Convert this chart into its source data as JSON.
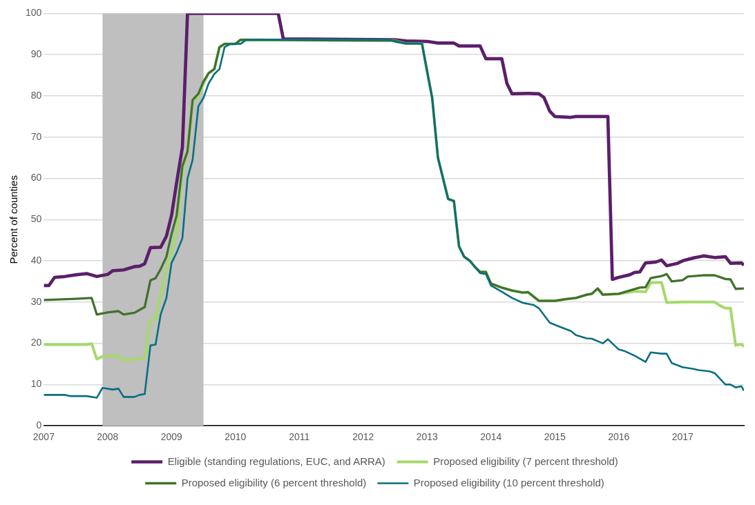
{
  "chart_data": {
    "type": "line",
    "ylabel": "Percent of counties",
    "xlim": [
      2007,
      2017.96
    ],
    "xticks": [
      2007,
      2008,
      2009,
      2010,
      2011,
      2012,
      2013,
      2014,
      2015,
      2016,
      2017
    ],
    "ylim": [
      0,
      100
    ],
    "yticks": [
      0,
      10,
      20,
      30,
      40,
      50,
      60,
      70,
      80,
      90,
      100
    ],
    "grid": "y",
    "legend": "bottom",
    "marker": "none",
    "line_style": "solid",
    "bands": [
      {
        "axis": "x",
        "from": 2007.92,
        "to": 2009.5,
        "color": "#bfbfbf"
      }
    ],
    "series": [
      {
        "name": "Eligible (standing regulations, EUC, and ARRA)",
        "color": "#5b1f6a",
        "x": [
          2007,
          2007.08,
          2007.17,
          2007.33,
          2007.5,
          2007.67,
          2007.83,
          2008,
          2008.08,
          2008.25,
          2008.42,
          2008.5,
          2008.58,
          2008.67,
          2008.83,
          2008.92,
          2009,
          2009.08,
          2009.17,
          2009.25,
          2010.67,
          2010.75,
          2012.5,
          2012.67,
          2013,
          2013.17,
          2013.42,
          2013.5,
          2013.83,
          2013.92,
          2014.17,
          2014.25,
          2014.33,
          2014.58,
          2014.75,
          2014.83,
          2014.92,
          2015,
          2015.25,
          2015.33,
          2015.83,
          2015.9,
          2016,
          2016.17,
          2016.25,
          2016.33,
          2016.42,
          2016.58,
          2016.67,
          2016.75,
          2016.92,
          2017,
          2017.17,
          2017.33,
          2017.5,
          2017.67,
          2017.75,
          2017.92,
          2017.96
        ],
        "values": [
          34,
          34,
          36,
          36.2,
          36.6,
          36.9,
          36.2,
          36.7,
          37.6,
          37.8,
          38.6,
          38.7,
          39.3,
          43.2,
          43.3,
          46,
          51,
          59,
          67.5,
          100,
          100,
          93.8,
          93.6,
          93.3,
          93.2,
          92.8,
          92.8,
          92.1,
          92.1,
          89,
          89,
          83,
          80.5,
          80.6,
          80.5,
          79.6,
          76.3,
          75,
          74.8,
          75,
          75,
          35.5,
          36,
          36.6,
          37.2,
          37.3,
          39.5,
          39.7,
          40.2,
          38.8,
          39.4,
          40,
          40.7,
          41.2,
          40.8,
          41,
          39.4,
          39.5,
          39
        ]
      },
      {
        "name": "Proposed eligibility (7 percent threshold)",
        "color": "#a5d96a",
        "x": [
          2007,
          2007.67,
          2007.75,
          2007.83,
          2007.92,
          2008.17,
          2008.25,
          2008.58,
          2008.67,
          2008.75,
          2008.83,
          2008.92,
          2009,
          2009.08,
          2009.17,
          2009.25,
          2009.33,
          2009.42,
          2009.5,
          2009.58,
          2009.67,
          2009.75,
          2009.83,
          2010,
          2010.08,
          2012.5,
          2012.58,
          2012.67,
          2012.92,
          2013,
          2013.08,
          2013.17,
          2013.33,
          2013.42,
          2013.5,
          2013.58,
          2013.67,
          2013.75,
          2013.83,
          2013.92,
          2014,
          2014.17,
          2014.33,
          2014.5,
          2014.58,
          2014.75,
          2015,
          2015.17,
          2015.33,
          2015.5,
          2015.58,
          2015.67,
          2015.75,
          2016,
          2016.25,
          2016.42,
          2016.5,
          2016.67,
          2016.75,
          2017,
          2017.5,
          2017.58,
          2017.67,
          2017.75,
          2017.83,
          2017.92,
          2017.96
        ],
        "values": [
          19.7,
          19.7,
          19.9,
          16.2,
          16.8,
          17,
          15.8,
          16.4,
          25.5,
          26,
          32,
          38,
          42,
          47,
          62,
          66,
          78.5,
          80,
          83,
          85.5,
          86.5,
          91.8,
          92.6,
          92.6,
          93.6,
          93.4,
          93,
          92.7,
          92.7,
          86,
          79.5,
          65,
          55,
          54.5,
          43.5,
          41,
          40,
          38.5,
          37.3,
          37.3,
          34.5,
          33.5,
          32.8,
          32.3,
          32.4,
          30.3,
          30.3,
          30.7,
          31,
          31.8,
          32,
          33.3,
          31.8,
          32,
          32.6,
          32.5,
          34.7,
          34.8,
          29.9,
          30,
          30,
          29.2,
          28.5,
          28.5,
          19.5,
          19.8,
          19.2
        ]
      },
      {
        "name": "Proposed eligibility (6 percent threshold)",
        "color": "#41722f",
        "x": [
          2007,
          2007.5,
          2007.75,
          2007.83,
          2008,
          2008.17,
          2008.25,
          2008.42,
          2008.58,
          2008.67,
          2008.75,
          2008.83,
          2008.92,
          2009,
          2009.08,
          2009.17,
          2009.25,
          2009.33,
          2009.42,
          2009.5,
          2009.58,
          2009.67,
          2009.75,
          2009.83,
          2010,
          2010.08,
          2012.5,
          2012.58,
          2012.67,
          2012.92,
          2013,
          2013.08,
          2013.17,
          2013.33,
          2013.42,
          2013.5,
          2013.58,
          2013.67,
          2013.75,
          2013.83,
          2013.92,
          2014,
          2014.17,
          2014.33,
          2014.5,
          2014.58,
          2014.75,
          2015,
          2015.17,
          2015.33,
          2015.5,
          2015.58,
          2015.67,
          2015.75,
          2016,
          2016.17,
          2016.33,
          2016.42,
          2016.5,
          2016.67,
          2016.75,
          2016.83,
          2017,
          2017.08,
          2017.33,
          2017.5,
          2017.67,
          2017.75,
          2017.83,
          2017.96
        ],
        "values": [
          30.5,
          30.8,
          31,
          27,
          27.5,
          27.8,
          27,
          27.4,
          28.8,
          35.3,
          35.8,
          38,
          41,
          46.5,
          51,
          63,
          66.5,
          79,
          80.5,
          83.5,
          85.5,
          86.5,
          91.8,
          92.6,
          92.6,
          93.6,
          93.4,
          93,
          92.7,
          92.7,
          86,
          79.5,
          65,
          55,
          54.5,
          43.5,
          41,
          40,
          38.5,
          37.3,
          37.3,
          34.5,
          33.5,
          32.8,
          32.3,
          32.4,
          30.3,
          30.3,
          30.7,
          31,
          31.8,
          32,
          33.3,
          31.8,
          32,
          32.8,
          33.5,
          33.6,
          35.8,
          36.3,
          36.8,
          35,
          35.3,
          36.2,
          36.5,
          36.5,
          35.6,
          35.5,
          33.2,
          33.3
        ]
      },
      {
        "name": "Proposed eligibility (10 percent threshold)",
        "color": "#066f80",
        "x": [
          2007,
          2007.33,
          2007.42,
          2007.67,
          2007.83,
          2007.92,
          2008.08,
          2008.17,
          2008.25,
          2008.42,
          2008.5,
          2008.58,
          2008.67,
          2008.75,
          2008.83,
          2008.92,
          2009,
          2009.08,
          2009.17,
          2009.25,
          2009.33,
          2009.42,
          2009.5,
          2009.58,
          2009.67,
          2009.75,
          2009.83,
          2009.92,
          2010.08,
          2010.17,
          2012.42,
          2012.5,
          2012.67,
          2012.92,
          2013,
          2013.08,
          2013.17,
          2013.33,
          2013.42,
          2013.5,
          2013.58,
          2013.67,
          2013.75,
          2013.83,
          2013.92,
          2014,
          2014.17,
          2014.33,
          2014.5,
          2014.67,
          2014.75,
          2014.92,
          2015.08,
          2015.25,
          2015.33,
          2015.5,
          2015.58,
          2015.75,
          2015.83,
          2016,
          2016.08,
          2016.25,
          2016.42,
          2016.5,
          2016.67,
          2016.75,
          2016.83,
          2017,
          2017.17,
          2017.25,
          2017.42,
          2017.5,
          2017.67,
          2017.75,
          2017.83,
          2017.92,
          2017.96
        ],
        "values": [
          7.5,
          7.5,
          7.2,
          7.2,
          6.8,
          9.2,
          8.8,
          9,
          7,
          7,
          7.5,
          7.7,
          19.5,
          19.7,
          27,
          31,
          39.5,
          42,
          45.5,
          60,
          64.5,
          77.5,
          79.5,
          83,
          85.3,
          86.5,
          91.8,
          92.6,
          92.6,
          93.6,
          93.6,
          93.1,
          92.7,
          92.7,
          86,
          79.5,
          65,
          55,
          54.5,
          43.5,
          41,
          40,
          38.5,
          37,
          36.8,
          34,
          32.5,
          31,
          29.8,
          29.3,
          28.5,
          25,
          24,
          23,
          22,
          21.2,
          21.1,
          20,
          21,
          18.5,
          18.2,
          17,
          15.5,
          17.8,
          17.5,
          17.5,
          15.2,
          14.2,
          13.8,
          13.5,
          13.2,
          12.8,
          10,
          10,
          9.3,
          9.6,
          8.5
        ]
      }
    ]
  }
}
